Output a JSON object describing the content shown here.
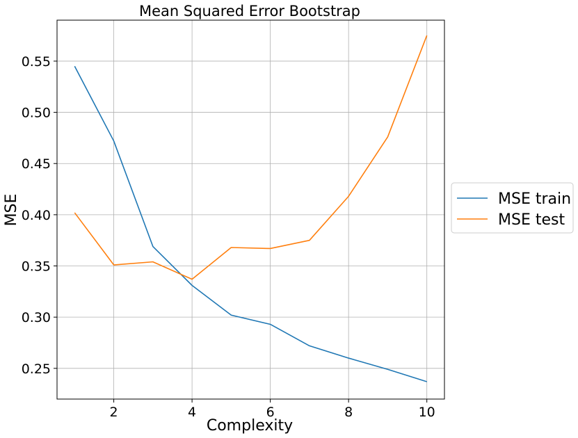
{
  "chart_data": {
    "type": "line",
    "title": "Mean Squared Error Bootstrap",
    "xlabel": "Complexity",
    "ylabel": "MSE",
    "xlim": [
      0.55,
      10.45
    ],
    "ylim": [
      0.22,
      0.59
    ],
    "xticks": [
      2,
      4,
      6,
      8,
      10
    ],
    "xtick_labels": [
      "2",
      "4",
      "6",
      "8",
      "10"
    ],
    "yticks": [
      0.25,
      0.3,
      0.35,
      0.4,
      0.45,
      0.5,
      0.55
    ],
    "ytick_labels": [
      "0.25",
      "0.30",
      "0.35",
      "0.40",
      "0.45",
      "0.50",
      "0.55"
    ],
    "grid": true,
    "legend_position": "outside-right",
    "x": [
      1,
      2,
      3,
      4,
      5,
      6,
      7,
      8,
      9,
      10
    ],
    "series": [
      {
        "name": "MSE train",
        "color": "#1f77b4",
        "values": [
          0.545,
          0.472,
          0.369,
          0.331,
          0.302,
          0.293,
          0.272,
          0.26,
          0.249,
          0.237
        ]
      },
      {
        "name": "MSE test",
        "color": "#ff7f0e",
        "values": [
          0.402,
          0.351,
          0.354,
          0.337,
          0.368,
          0.367,
          0.375,
          0.418,
          0.476,
          0.575
        ]
      }
    ]
  }
}
